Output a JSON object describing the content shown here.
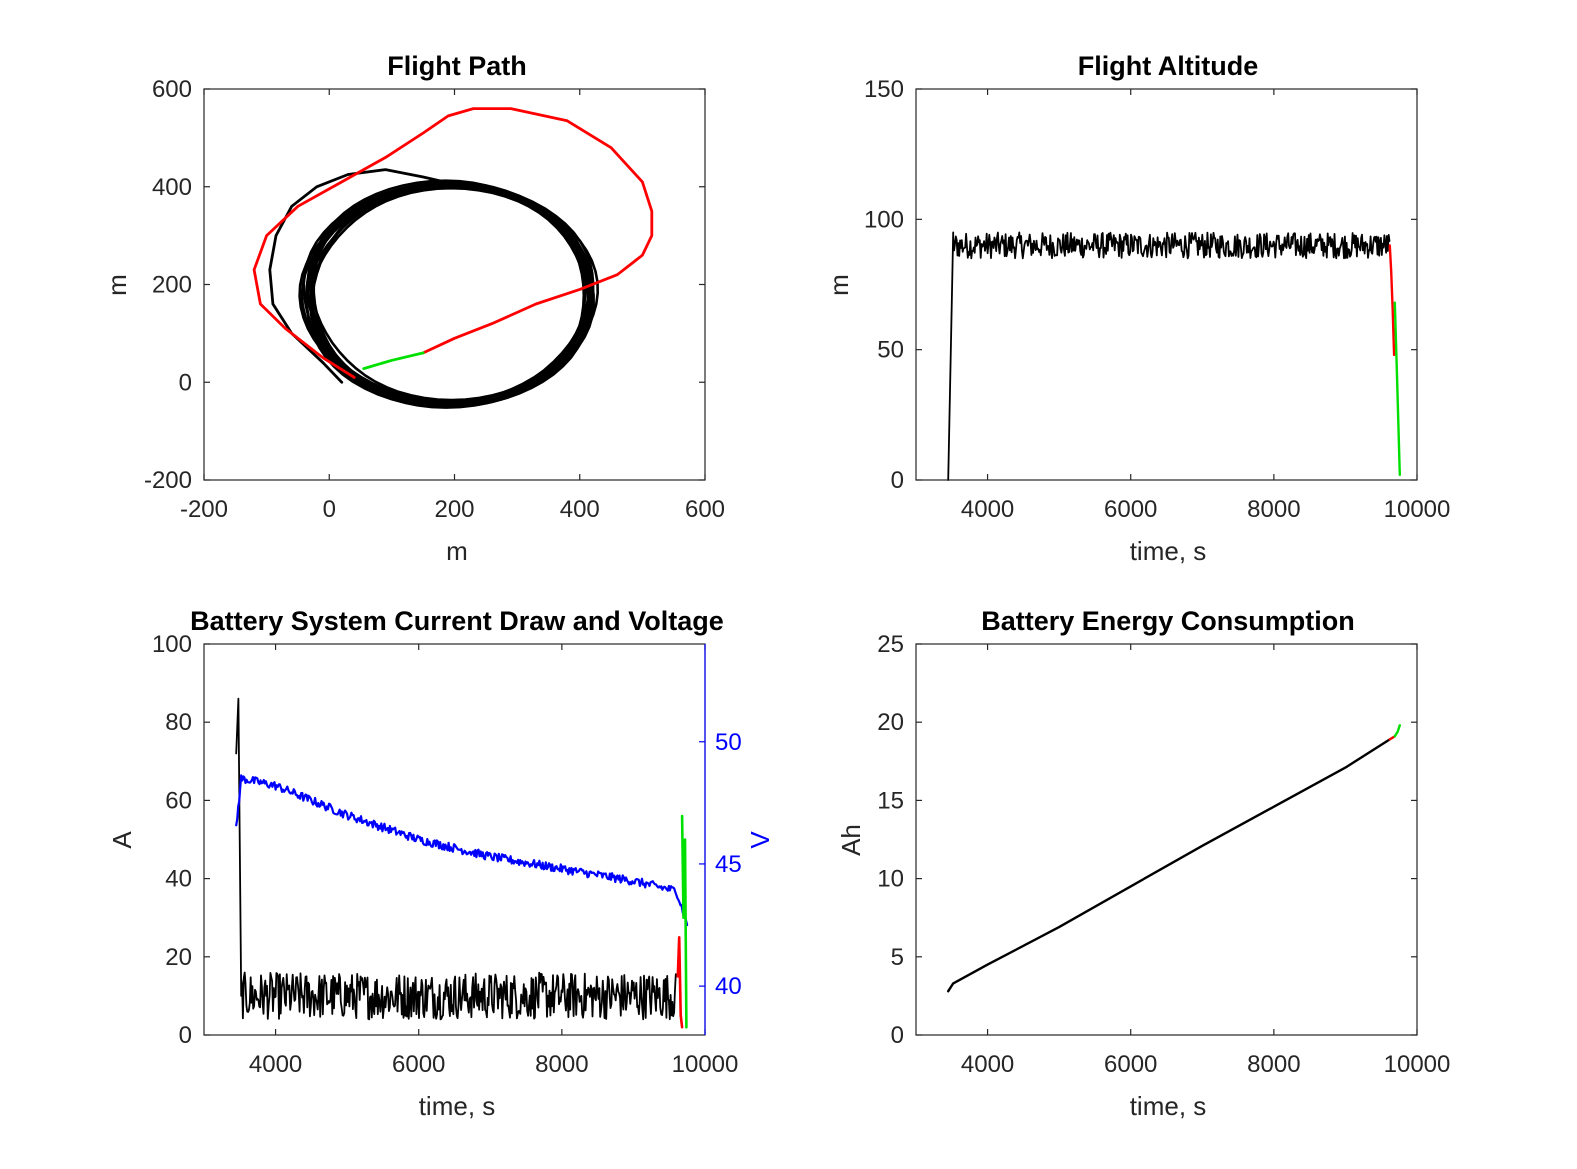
{
  "chart_data": [
    {
      "type": "line",
      "title": "Flight Path",
      "xlabel": "m",
      "ylabel": "m",
      "xlim": [
        -200,
        600
      ],
      "ylim": [
        -200,
        600
      ],
      "xticks": [
        -200,
        0,
        200,
        400,
        600
      ],
      "yticks": [
        -200,
        0,
        200,
        400,
        600
      ],
      "series": [
        {
          "color": "#000000",
          "style": "climb-arc",
          "x": [
            20,
            -10,
            -60,
            -90,
            -95,
            -85,
            -60,
            -20,
            30,
            90,
            150,
            200,
            250
          ],
          "y": [
            0,
            40,
            100,
            160,
            230,
            300,
            360,
            400,
            425,
            435,
            420,
            405,
            400
          ]
        },
        {
          "color": "#000000",
          "style": "loiter-circle",
          "center": [
            190,
            180
          ],
          "radius_x": 225,
          "radius_y": 225,
          "laps": 14
        },
        {
          "color": "#ff0000",
          "x": [
            40,
            -10,
            -70,
            -110,
            -120,
            -100,
            -50,
            20,
            90,
            150,
            190,
            230,
            290,
            380,
            450,
            500,
            515,
            515,
            500,
            460,
            400,
            330,
            260,
            200,
            150
          ],
          "y": [
            10,
            50,
            110,
            160,
            230,
            300,
            360,
            410,
            460,
            510,
            545,
            560,
            560,
            535,
            480,
            410,
            350,
            300,
            260,
            220,
            190,
            160,
            120,
            90,
            60
          ]
        },
        {
          "color": "#00e000",
          "x": [
            150,
            100,
            55
          ],
          "y": [
            60,
            45,
            28
          ]
        }
      ]
    },
    {
      "type": "line",
      "title": "Flight Altitude",
      "xlabel": "time, s",
      "ylabel": "m",
      "xlim": [
        3000,
        10000
      ],
      "ylim": [
        0,
        150
      ],
      "xticks": [
        4000,
        6000,
        8000,
        10000
      ],
      "yticks": [
        0,
        50,
        100,
        150
      ],
      "series": [
        {
          "color": "#000000",
          "segments": [
            [
              3450,
              0
            ],
            [
              3520,
              95
            ],
            [
              9620,
              88
            ]
          ],
          "cruise_mean": 90,
          "cruise_noise": 5
        },
        {
          "color": "#ff0000",
          "x": [
            9620,
            9640,
            9660,
            9680
          ],
          "y": [
            90,
            80,
            65,
            48
          ]
        },
        {
          "color": "#00e000",
          "x": [
            9690,
            9720,
            9760
          ],
          "y": [
            68,
            40,
            2
          ]
        }
      ]
    },
    {
      "type": "line",
      "title": "Battery System Current Draw and Voltage",
      "xlabel": "time, s",
      "ylabel": "A",
      "y2label": "V",
      "xlim": [
        3000,
        10000
      ],
      "ylim": [
        0,
        100
      ],
      "y2lim": [
        38,
        54
      ],
      "xticks": [
        4000,
        6000,
        8000,
        10000
      ],
      "yticks": [
        0,
        20,
        40,
        60,
        80,
        100
      ],
      "y2ticks": [
        40,
        45,
        50
      ],
      "series": [
        {
          "color": "#000000",
          "axis": "left",
          "name_hint": "current",
          "spike": [
            [
              3450,
              72
            ],
            [
              3480,
              86
            ],
            [
              3520,
              10
            ]
          ],
          "mean": 10,
          "noise": 6,
          "x_end": 9600
        },
        {
          "color": "#ff0000",
          "axis": "left",
          "x": [
            9620,
            9640,
            9660,
            9680
          ],
          "y": [
            15,
            25,
            5,
            2
          ]
        },
        {
          "color": "#00e000",
          "axis": "left",
          "x": [
            9680,
            9700,
            9720,
            9740
          ],
          "y": [
            56,
            30,
            50,
            2
          ]
        },
        {
          "color": "#0000ff",
          "axis": "right",
          "x": [
            3450,
            3520,
            4000,
            5000,
            6000,
            7000,
            8000,
            9000,
            9600,
            9700,
            9750
          ],
          "y": [
            46.5,
            48.5,
            48.2,
            47.0,
            46.0,
            45.3,
            44.8,
            44.3,
            43.9,
            43.0,
            42.5
          ]
        }
      ]
    },
    {
      "type": "line",
      "title": "Battery Energy Consumption",
      "xlabel": "time, s",
      "ylabel": "Ah",
      "xlim": [
        3000,
        10000
      ],
      "ylim": [
        0,
        25
      ],
      "xticks": [
        4000,
        6000,
        8000,
        10000
      ],
      "yticks": [
        0,
        5,
        10,
        15,
        20,
        25
      ],
      "series": [
        {
          "color": "#000000",
          "x": [
            3450,
            3520,
            4000,
            5000,
            6000,
            7000,
            8000,
            9000,
            9620
          ],
          "y": [
            2.8,
            3.3,
            4.5,
            6.9,
            9.5,
            12.1,
            14.6,
            17.1,
            18.9
          ]
        },
        {
          "color": "#ff0000",
          "x": [
            9620,
            9690
          ],
          "y": [
            18.9,
            19.1
          ]
        },
        {
          "color": "#00e000",
          "x": [
            9690,
            9730,
            9760
          ],
          "y": [
            19.1,
            19.4,
            19.8
          ]
        }
      ]
    }
  ]
}
